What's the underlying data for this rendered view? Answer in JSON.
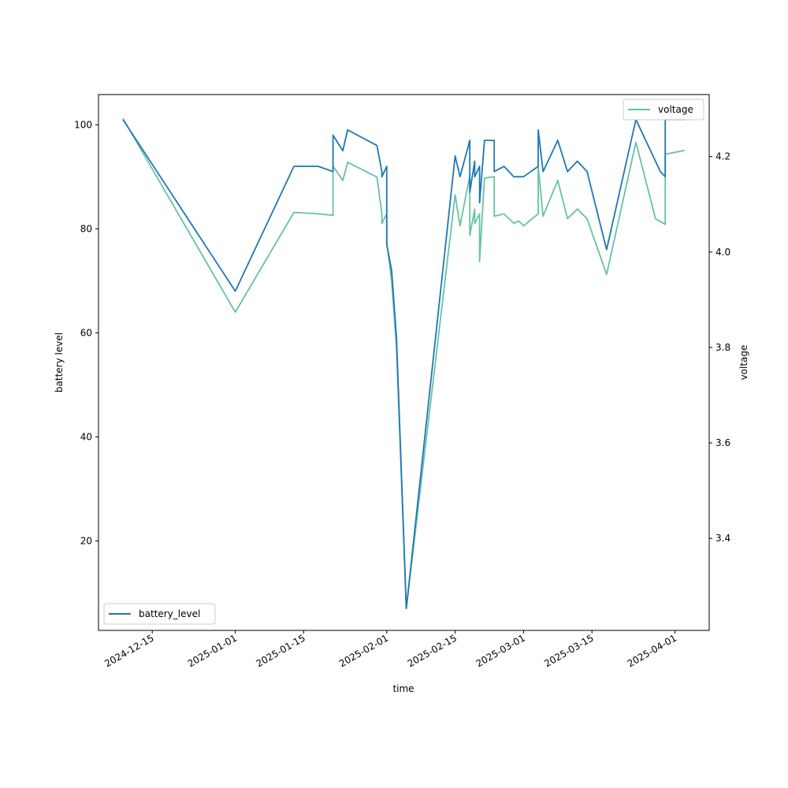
{
  "chart_data": {
    "type": "line",
    "xlabel": "time",
    "ylabel_left": "battery level",
    "ylabel_right": "voltage",
    "x_ticks": [
      "2024-12-15",
      "2025-01-01",
      "2025-01-15",
      "2025-02-01",
      "2025-02-15",
      "2025-03-01",
      "2025-03-15",
      "2025-04-01"
    ],
    "y_left_ticks": [
      20,
      40,
      60,
      80,
      100
    ],
    "y_right_ticks": [
      3.4,
      3.6,
      3.8,
      4.0,
      4.2
    ],
    "xlim": [
      "2024-12-04",
      "2025-04-08"
    ],
    "ylim_left": [
      2.8,
      105.8
    ],
    "ylim_right": [
      3.207,
      4.33
    ],
    "legend_left": {
      "position": "lower-left",
      "label": "battery_level"
    },
    "legend_right": {
      "position": "upper-right",
      "label": "voltage"
    },
    "colors": {
      "battery_level": "#1f77b4",
      "voltage": "#66c2a5"
    },
    "series": [
      {
        "name": "battery_level",
        "axis": "left",
        "points": [
          [
            "2024-12-09",
            101
          ],
          [
            "2025-01-01",
            68
          ],
          [
            "2025-01-13",
            92
          ],
          [
            "2025-01-18",
            92
          ],
          [
            "2025-01-21",
            91
          ],
          [
            "2025-01-21",
            98
          ],
          [
            "2025-01-23",
            95
          ],
          [
            "2025-01-24",
            99
          ],
          [
            "2025-01-30",
            96
          ],
          [
            "2025-01-31",
            91
          ],
          [
            "2025-01-31",
            90
          ],
          [
            "2025-02-01",
            92
          ],
          [
            "2025-02-01",
            77
          ],
          [
            "2025-02-02",
            72
          ],
          [
            "2025-02-03",
            59
          ],
          [
            "2025-02-05",
            7
          ],
          [
            "2025-02-15",
            94
          ],
          [
            "2025-02-16",
            90
          ],
          [
            "2025-02-18",
            97
          ],
          [
            "2025-02-18",
            87
          ],
          [
            "2025-02-19",
            93
          ],
          [
            "2025-02-19",
            90
          ],
          [
            "2025-02-20",
            92
          ],
          [
            "2025-02-20",
            85
          ],
          [
            "2025-02-21",
            97
          ],
          [
            "2025-02-23",
            97
          ],
          [
            "2025-02-23",
            91
          ],
          [
            "2025-02-25",
            92
          ],
          [
            "2025-02-27",
            90
          ],
          [
            "2025-03-01",
            90
          ],
          [
            "2025-03-04",
            92
          ],
          [
            "2025-03-04",
            99
          ],
          [
            "2025-03-05",
            91
          ],
          [
            "2025-03-08",
            97
          ],
          [
            "2025-03-10",
            91
          ],
          [
            "2025-03-12",
            93
          ],
          [
            "2025-03-14",
            91
          ],
          [
            "2025-03-18",
            76
          ],
          [
            "2025-03-24",
            101
          ],
          [
            "2025-03-26",
            97
          ],
          [
            "2025-03-29",
            91
          ],
          [
            "2025-03-30",
            90
          ],
          [
            "2025-03-30",
            101
          ],
          [
            "2025-04-03",
            101
          ]
        ]
      },
      {
        "name": "voltage",
        "axis": "right",
        "points": [
          [
            "2024-12-09",
            4.28
          ],
          [
            "2025-01-01",
            3.874
          ],
          [
            "2025-01-13",
            4.083
          ],
          [
            "2025-01-18",
            4.08
          ],
          [
            "2025-01-21",
            4.077
          ],
          [
            "2025-01-21",
            4.18
          ],
          [
            "2025-01-23",
            4.15
          ],
          [
            "2025-01-24",
            4.188
          ],
          [
            "2025-01-30",
            4.157
          ],
          [
            "2025-01-31",
            4.08
          ],
          [
            "2025-01-31",
            4.06
          ],
          [
            "2025-02-01",
            4.08
          ],
          [
            "2025-02-01",
            4.02
          ],
          [
            "2025-02-02",
            3.94
          ],
          [
            "2025-02-03",
            3.8
          ],
          [
            "2025-02-05",
            3.253
          ],
          [
            "2025-02-15",
            4.12
          ],
          [
            "2025-02-16",
            4.055
          ],
          [
            "2025-02-18",
            4.16
          ],
          [
            "2025-02-18",
            4.035
          ],
          [
            "2025-02-19",
            4.09
          ],
          [
            "2025-02-19",
            4.06
          ],
          [
            "2025-02-20",
            4.08
          ],
          [
            "2025-02-20",
            3.98
          ],
          [
            "2025-02-21",
            4.155
          ],
          [
            "2025-02-23",
            4.158
          ],
          [
            "2025-02-23",
            4.075
          ],
          [
            "2025-02-25",
            4.08
          ],
          [
            "2025-02-27",
            4.06
          ],
          [
            "2025-02-28",
            4.065
          ],
          [
            "2025-03-01",
            4.055
          ],
          [
            "2025-03-04",
            4.08
          ],
          [
            "2025-03-04",
            4.18
          ],
          [
            "2025-03-05",
            4.075
          ],
          [
            "2025-03-08",
            4.15
          ],
          [
            "2025-03-10",
            4.07
          ],
          [
            "2025-03-12",
            4.09
          ],
          [
            "2025-03-14",
            4.07
          ],
          [
            "2025-03-18",
            3.953
          ],
          [
            "2025-03-24",
            4.23
          ],
          [
            "2025-03-28",
            4.07
          ],
          [
            "2025-03-30",
            4.058
          ],
          [
            "2025-03-30",
            4.205
          ],
          [
            "2025-04-03",
            4.213
          ]
        ]
      }
    ]
  }
}
